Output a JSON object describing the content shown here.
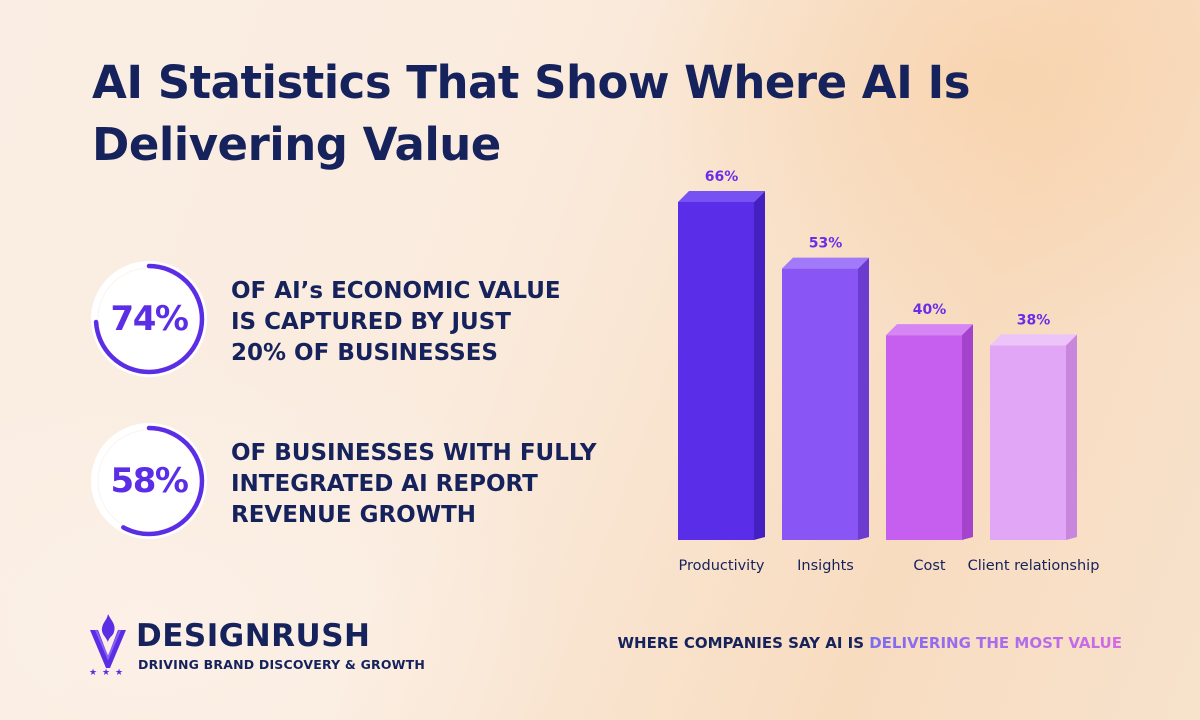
{
  "title": "AI Statistics That Show Where AI Is Delivering Value",
  "stats": [
    {
      "value": "74%",
      "fraction": 0.74,
      "text": "OF AI’s ECONOMIC VALUE\nIS CAPTURED BY JUST\n20% OF BUSINESSES"
    },
    {
      "value": "58%",
      "fraction": 0.58,
      "text": "OF BUSINESSES WITH FULLY\nINTEGRATED AI REPORT\nREVENUE GROWTH"
    }
  ],
  "chart_data": {
    "type": "bar",
    "categories": [
      "Productivity",
      "Insights",
      "Cost",
      "Client relationship"
    ],
    "values": [
      66,
      53,
      40,
      38
    ],
    "data_labels": [
      "66%",
      "53%",
      "40%",
      "38%"
    ],
    "colors": [
      "#5a2ee8",
      "#8a55f5",
      "#c65ff0",
      "#e1a6f6"
    ],
    "side_colors": [
      "#4420c0",
      "#6b3ccf",
      "#a444cc",
      "#c886dd"
    ],
    "top_colors": [
      "#7752f2",
      "#a07af8",
      "#d585f4",
      "#edc4fa"
    ],
    "label_color": "#6b2ee8",
    "ylim": [
      0,
      66
    ],
    "grid": false,
    "legend": "none"
  },
  "brand": {
    "name": "DESIGNRUSH",
    "tagline": "DRIVING BRAND DISCOVERY & GROWTH",
    "accent": "#5b2ee6"
  },
  "caption": {
    "prefix": "WHERE COMPANIES SAY AI IS ",
    "highlight": "DELIVERING THE MOST VALUE"
  },
  "colors": {
    "navy": "#16225c",
    "ring_accent": "#5b2ee6",
    "ring_track": "#ffffff"
  }
}
